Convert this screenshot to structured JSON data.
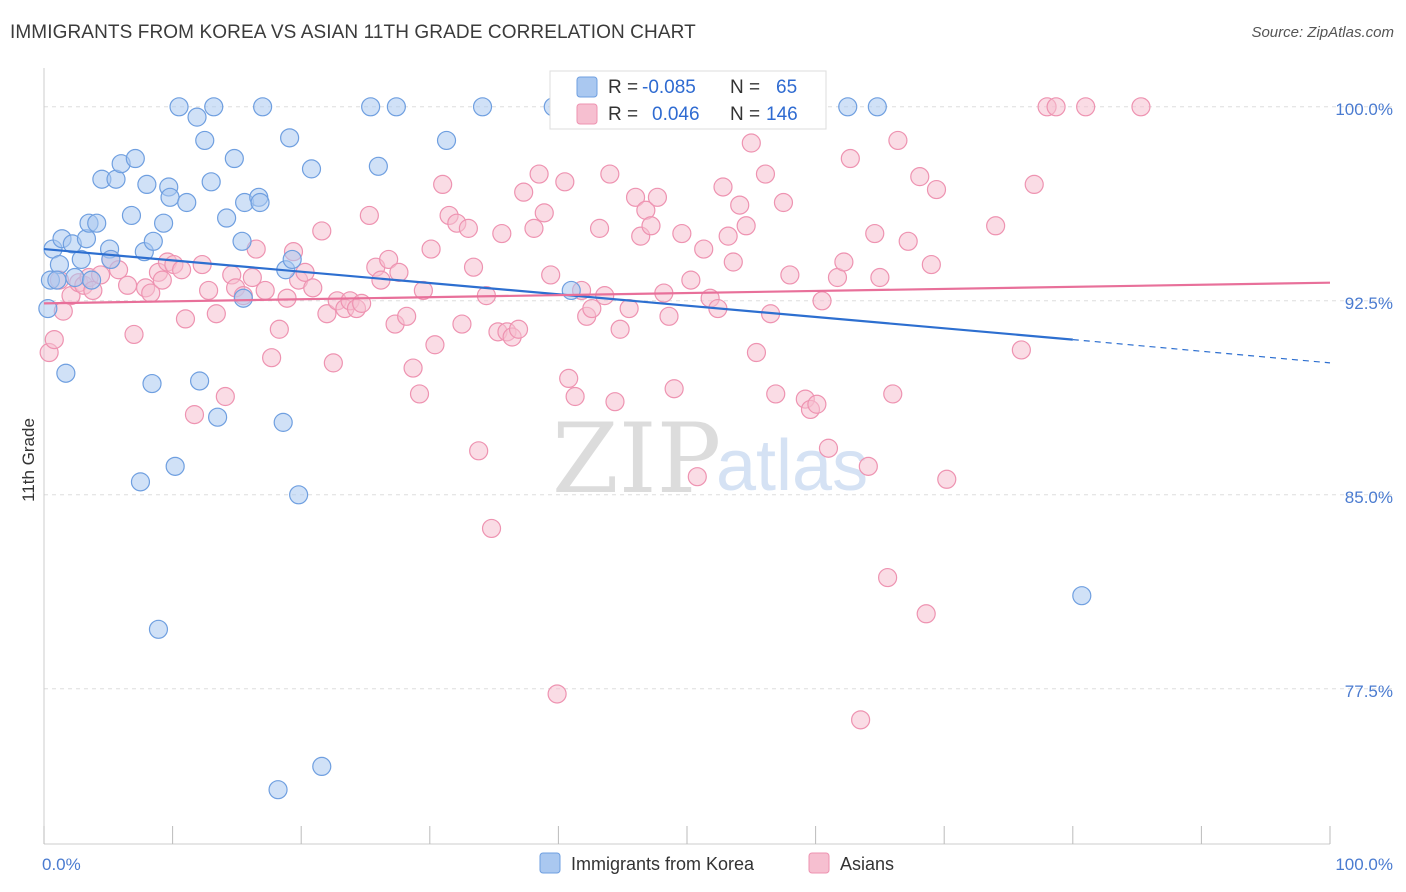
{
  "title": "IMMIGRANTS FROM KOREA VS ASIAN 11TH GRADE CORRELATION CHART",
  "source": "Source: ZipAtlas.com",
  "watermark": {
    "part1": "ZIP",
    "part2": "atlas"
  },
  "colors": {
    "blue_fill": "#aac8f0",
    "blue_stroke": "#6f9fe0",
    "blue_line": "#2d6fd0",
    "pink_fill": "#f6bfd0",
    "pink_stroke": "#ee93b1",
    "pink_line": "#e8709a",
    "tick_text": "#4a7bd0",
    "grid": "#dddddd"
  },
  "legend": {
    "r_label": "R =",
    "n_label": "N =",
    "rows": [
      {
        "series": "blue",
        "r": "-0.085",
        "n": "65"
      },
      {
        "series": "pink",
        "r": "0.046",
        "n": "146"
      }
    ]
  },
  "bottom_legend": [
    {
      "series": "blue",
      "label": "Immigrants from Korea"
    },
    {
      "series": "pink",
      "label": "Asians"
    }
  ],
  "chart_data": {
    "type": "scatter",
    "title": "IMMIGRANTS FROM KOREA VS ASIAN 11TH GRADE CORRELATION CHART",
    "xlabel": "",
    "ylabel": "11th Grade",
    "xlim": [
      0,
      100
    ],
    "ylim": [
      71.5,
      101.5
    ],
    "x_tick_labels": [
      {
        "value": 0,
        "label": "0.0%"
      },
      {
        "value": 100,
        "label": "100.0%"
      }
    ],
    "y_tick_labels": [
      {
        "value": 100,
        "label": "100.0%"
      },
      {
        "value": 92.5,
        "label": "92.5%"
      },
      {
        "value": 85,
        "label": "85.0%"
      },
      {
        "value": 77.5,
        "label": "77.5%"
      }
    ],
    "x_minor_ticks": [
      0,
      10,
      20,
      30,
      40,
      50,
      60,
      70,
      80,
      90,
      100
    ],
    "grid": true,
    "legend_position": "top-center",
    "series": [
      {
        "name": "Immigrants from Korea",
        "color": "blue",
        "trend": {
          "x0": 0,
          "y0": 94.5,
          "x1": 80,
          "y1": 91.0,
          "dashed_to_x": 100,
          "dashed_to_y": 90.1
        },
        "points": [
          [
            0.3,
            92.2
          ],
          [
            0.5,
            93.3
          ],
          [
            0.7,
            94.5
          ],
          [
            1.2,
            93.9
          ],
          [
            1.4,
            94.9
          ],
          [
            1.7,
            89.7
          ],
          [
            2.2,
            94.7
          ],
          [
            2.4,
            93.4
          ],
          [
            2.9,
            94.1
          ],
          [
            3.3,
            94.9
          ],
          [
            3.5,
            95.5
          ],
          [
            3.7,
            93.3
          ],
          [
            4.1,
            95.5
          ],
          [
            4.5,
            97.2
          ],
          [
            5.1,
            94.5
          ],
          [
            5.2,
            94.1
          ],
          [
            5.6,
            97.2
          ],
          [
            6.0,
            97.8
          ],
          [
            6.8,
            95.8
          ],
          [
            7.1,
            98.0
          ],
          [
            7.5,
            85.5
          ],
          [
            7.8,
            94.4
          ],
          [
            8.0,
            97.0
          ],
          [
            8.4,
            89.3
          ],
          [
            8.5,
            94.8
          ],
          [
            8.9,
            79.8
          ],
          [
            9.3,
            95.5
          ],
          [
            9.7,
            96.9
          ],
          [
            9.8,
            96.5
          ],
          [
            10.2,
            86.1
          ],
          [
            10.5,
            100.0
          ],
          [
            11.1,
            96.3
          ],
          [
            11.9,
            99.6
          ],
          [
            12.1,
            89.4
          ],
          [
            12.5,
            98.7
          ],
          [
            13.0,
            97.1
          ],
          [
            13.2,
            100.0
          ],
          [
            13.5,
            88.0
          ],
          [
            14.2,
            95.7
          ],
          [
            14.8,
            98.0
          ],
          [
            15.4,
            94.8
          ],
          [
            15.5,
            92.6
          ],
          [
            15.6,
            96.3
          ],
          [
            16.7,
            96.5
          ],
          [
            16.8,
            96.3
          ],
          [
            17.0,
            100.0
          ],
          [
            18.6,
            87.8
          ],
          [
            18.8,
            93.7
          ],
          [
            19.1,
            98.8
          ],
          [
            19.3,
            94.1
          ],
          [
            19.8,
            85.0
          ],
          [
            20.8,
            97.6
          ],
          [
            21.6,
            74.5
          ],
          [
            25.4,
            100.0
          ],
          [
            26.0,
            97.7
          ],
          [
            27.4,
            100.0
          ],
          [
            31.3,
            98.7
          ],
          [
            34.1,
            100.0
          ],
          [
            39.6,
            100.0
          ],
          [
            41.0,
            92.9
          ],
          [
            18.2,
            73.6
          ],
          [
            62.5,
            100.0
          ],
          [
            64.8,
            100.0
          ],
          [
            80.7,
            81.1
          ],
          [
            1.0,
            93.3
          ]
        ]
      },
      {
        "name": "Asians",
        "color": "pink",
        "trend": {
          "x0": 0,
          "y0": 92.4,
          "x1": 100,
          "y1": 93.2
        },
        "points": [
          [
            0.4,
            90.5
          ],
          [
            0.8,
            91.0
          ],
          [
            1.2,
            93.3
          ],
          [
            1.5,
            92.1
          ],
          [
            2.1,
            92.7
          ],
          [
            2.7,
            93.2
          ],
          [
            3.1,
            93.1
          ],
          [
            3.5,
            93.4
          ],
          [
            3.8,
            92.9
          ],
          [
            4.4,
            93.5
          ],
          [
            5.2,
            94.1
          ],
          [
            5.8,
            93.7
          ],
          [
            6.5,
            93.1
          ],
          [
            7.0,
            91.2
          ],
          [
            7.9,
            93.0
          ],
          [
            8.3,
            92.8
          ],
          [
            8.9,
            93.6
          ],
          [
            9.2,
            93.3
          ],
          [
            9.6,
            94.0
          ],
          [
            10.1,
            93.9
          ],
          [
            10.7,
            93.7
          ],
          [
            11.0,
            91.8
          ],
          [
            11.7,
            88.1
          ],
          [
            12.3,
            93.9
          ],
          [
            12.8,
            92.9
          ],
          [
            13.4,
            92.0
          ],
          [
            14.1,
            88.8
          ],
          [
            14.6,
            93.5
          ],
          [
            14.9,
            93.0
          ],
          [
            15.5,
            92.7
          ],
          [
            16.2,
            93.4
          ],
          [
            16.5,
            94.5
          ],
          [
            17.2,
            92.9
          ],
          [
            17.7,
            90.3
          ],
          [
            18.3,
            91.4
          ],
          [
            18.9,
            92.6
          ],
          [
            19.4,
            94.4
          ],
          [
            19.8,
            93.3
          ],
          [
            20.3,
            93.6
          ],
          [
            20.9,
            93.0
          ],
          [
            21.6,
            95.2
          ],
          [
            22.0,
            92.0
          ],
          [
            22.5,
            90.1
          ],
          [
            22.8,
            92.5
          ],
          [
            23.4,
            92.2
          ],
          [
            23.8,
            92.5
          ],
          [
            24.3,
            92.2
          ],
          [
            24.7,
            92.4
          ],
          [
            25.3,
            95.8
          ],
          [
            25.8,
            93.8
          ],
          [
            26.2,
            93.3
          ],
          [
            26.8,
            94.1
          ],
          [
            27.3,
            91.6
          ],
          [
            27.6,
            93.6
          ],
          [
            28.2,
            91.9
          ],
          [
            28.7,
            89.9
          ],
          [
            29.2,
            88.9
          ],
          [
            29.5,
            92.9
          ],
          [
            30.1,
            94.5
          ],
          [
            30.4,
            90.8
          ],
          [
            31.0,
            97.0
          ],
          [
            31.5,
            95.8
          ],
          [
            32.1,
            95.5
          ],
          [
            32.5,
            91.6
          ],
          [
            33.0,
            95.3
          ],
          [
            33.4,
            93.8
          ],
          [
            33.8,
            86.7
          ],
          [
            34.4,
            92.7
          ],
          [
            34.8,
            83.7
          ],
          [
            35.3,
            91.3
          ],
          [
            35.6,
            95.1
          ],
          [
            36.0,
            91.3
          ],
          [
            36.4,
            91.1
          ],
          [
            36.9,
            91.4
          ],
          [
            37.3,
            96.7
          ],
          [
            38.1,
            95.3
          ],
          [
            38.5,
            97.4
          ],
          [
            38.9,
            95.9
          ],
          [
            39.4,
            93.5
          ],
          [
            39.9,
            77.3
          ],
          [
            40.5,
            97.1
          ],
          [
            40.8,
            89.5
          ],
          [
            41.3,
            88.8
          ],
          [
            41.8,
            92.9
          ],
          [
            42.2,
            91.9
          ],
          [
            42.6,
            92.2
          ],
          [
            43.2,
            95.3
          ],
          [
            43.6,
            92.7
          ],
          [
            44.0,
            97.4
          ],
          [
            44.4,
            88.6
          ],
          [
            44.8,
            91.4
          ],
          [
            45.5,
            92.2
          ],
          [
            46.0,
            96.5
          ],
          [
            46.4,
            95.0
          ],
          [
            46.8,
            96.0
          ],
          [
            47.2,
            95.4
          ],
          [
            47.7,
            96.5
          ],
          [
            48.2,
            92.8
          ],
          [
            48.6,
            91.9
          ],
          [
            49.0,
            89.1
          ],
          [
            49.6,
            95.1
          ],
          [
            50.3,
            93.3
          ],
          [
            50.8,
            85.7
          ],
          [
            51.3,
            94.5
          ],
          [
            51.8,
            92.6
          ],
          [
            52.4,
            92.2
          ],
          [
            52.8,
            96.9
          ],
          [
            53.2,
            95.0
          ],
          [
            53.6,
            94.0
          ],
          [
            54.1,
            96.2
          ],
          [
            54.6,
            95.4
          ],
          [
            55.0,
            98.6
          ],
          [
            55.4,
            90.5
          ],
          [
            56.1,
            97.4
          ],
          [
            56.5,
            92.0
          ],
          [
            56.9,
            88.9
          ],
          [
            57.5,
            96.3
          ],
          [
            58.0,
            93.5
          ],
          [
            59.2,
            88.7
          ],
          [
            59.6,
            88.3
          ],
          [
            60.1,
            88.5
          ],
          [
            60.5,
            92.5
          ],
          [
            61.0,
            86.8
          ],
          [
            61.7,
            93.4
          ],
          [
            62.2,
            94.0
          ],
          [
            62.7,
            98.0
          ],
          [
            63.5,
            76.3
          ],
          [
            64.1,
            86.1
          ],
          [
            64.6,
            95.1
          ],
          [
            65.0,
            93.4
          ],
          [
            65.6,
            81.8
          ],
          [
            66.0,
            88.9
          ],
          [
            66.4,
            98.7
          ],
          [
            67.2,
            94.8
          ],
          [
            68.1,
            97.3
          ],
          [
            68.6,
            80.4
          ],
          [
            69.0,
            93.9
          ],
          [
            69.4,
            96.8
          ],
          [
            70.2,
            85.6
          ],
          [
            74.0,
            95.4
          ],
          [
            76.0,
            90.6
          ],
          [
            77.0,
            97.0
          ],
          [
            78.0,
            100.0
          ],
          [
            78.7,
            100.0
          ],
          [
            81.0,
            100.0
          ],
          [
            85.3,
            100.0
          ]
        ]
      }
    ]
  }
}
